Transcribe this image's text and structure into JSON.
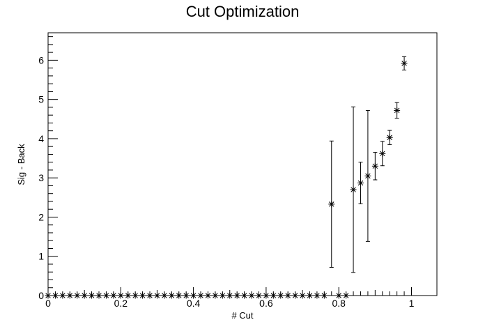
{
  "chart_data": {
    "type": "scatter",
    "title": "Cut Optimization",
    "xlabel": "# Cut",
    "ylabel": "Sig - Back",
    "xlim": [
      0,
      1.07
    ],
    "ylim": [
      0,
      6.7
    ],
    "grid": false,
    "marker": "star",
    "x_tick_labels": [
      "0",
      "0.2",
      "0.4",
      "0.6",
      "0.8",
      "1"
    ],
    "x_tick_values": [
      0,
      0.2,
      0.4,
      0.6,
      0.8,
      1
    ],
    "y_tick_labels": [
      "0",
      "1",
      "2",
      "3",
      "4",
      "5",
      "6"
    ],
    "y_tick_values": [
      0,
      1,
      2,
      3,
      4,
      5,
      6
    ],
    "series": [
      {
        "x": [
          0.0,
          0.02,
          0.04,
          0.06,
          0.08,
          0.1,
          0.12,
          0.14,
          0.16,
          0.18,
          0.2,
          0.22,
          0.24,
          0.26,
          0.28,
          0.3,
          0.32,
          0.34,
          0.36,
          0.38,
          0.4,
          0.42,
          0.44,
          0.46,
          0.48,
          0.5,
          0.52,
          0.54,
          0.56,
          0.58,
          0.6,
          0.62,
          0.64,
          0.66,
          0.68,
          0.7,
          0.72,
          0.74,
          0.76,
          0.78,
          0.8,
          0.82,
          0.84,
          0.86,
          0.88,
          0.9,
          0.92,
          0.94,
          0.96,
          0.98
        ],
        "y": [
          0,
          0,
          0,
          0,
          0,
          0,
          0,
          0,
          0,
          0,
          0,
          0,
          0,
          0,
          0,
          0,
          0,
          0,
          0,
          0,
          0,
          0,
          0,
          0,
          0,
          0,
          0,
          0,
          0,
          0,
          0,
          0,
          0,
          0,
          0,
          0,
          0,
          0,
          0,
          2.33,
          0,
          0,
          2.7,
          2.87,
          3.05,
          3.3,
          3.62,
          4.03,
          4.72,
          5.92
        ],
        "y_error": [
          0,
          0,
          0,
          0,
          0,
          0,
          0,
          0,
          0,
          0,
          0,
          0,
          0,
          0,
          0,
          0,
          0,
          0,
          0,
          0,
          0,
          0,
          0,
          0,
          0,
          0,
          0,
          0,
          0,
          0,
          0,
          0,
          0,
          0,
          0,
          0,
          0,
          0,
          0,
          1.61,
          0,
          0,
          2.11,
          0.53,
          1.67,
          0.35,
          0.31,
          0.18,
          0.2,
          0.17
        ]
      }
    ]
  }
}
